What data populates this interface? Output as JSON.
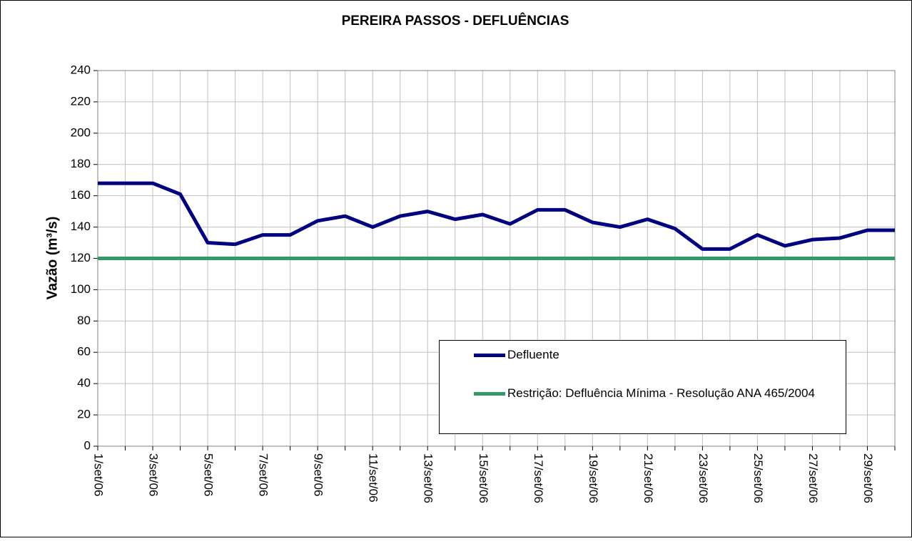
{
  "chart_data": {
    "type": "line",
    "title": "PEREIRA PASSOS - DEFLUÊNCIAS",
    "y_label": "Vazão (m³/s)",
    "categories": [
      "1/set/06",
      null,
      "3/set/06",
      null,
      "5/set/06",
      null,
      "7/set/06",
      null,
      "9/set/06",
      null,
      "11/set/06",
      null,
      "13/set/06",
      null,
      "15/set/06",
      null,
      "17/set/06",
      null,
      "19/set/06",
      null,
      "21/set/06",
      null,
      "23/set/06",
      null,
      "25/set/06",
      null,
      "27/set/06",
      null,
      "29/set/06",
      null
    ],
    "series": [
      {
        "name": "Defluente",
        "color": "#000080",
        "values": [
          168,
          168,
          168,
          161,
          130,
          129,
          135,
          135,
          144,
          147,
          140,
          147,
          150,
          145,
          148,
          142,
          151,
          151,
          143,
          140,
          145,
          139,
          126,
          126,
          135,
          128,
          132,
          133,
          138,
          138
        ]
      },
      {
        "name": "Restrição: Defluência Mínima - Resolução ANA 465/2004",
        "color": "#339966",
        "values": [
          120,
          120,
          120,
          120,
          120,
          120,
          120,
          120,
          120,
          120,
          120,
          120,
          120,
          120,
          120,
          120,
          120,
          120,
          120,
          120,
          120,
          120,
          120,
          120,
          120,
          120,
          120,
          120,
          120,
          120
        ]
      }
    ],
    "ylim": [
      0,
      240
    ],
    "yticks": [
      0,
      20,
      40,
      60,
      80,
      100,
      120,
      140,
      160,
      180,
      200,
      220,
      240
    ],
    "grid": true,
    "legend": "lower right"
  }
}
